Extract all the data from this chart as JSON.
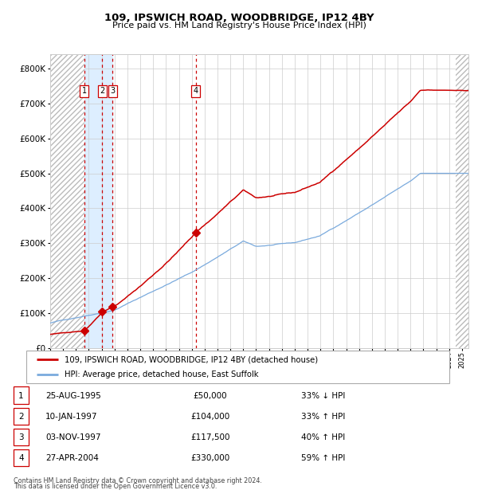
{
  "title": "109, IPSWICH ROAD, WOODBRIDGE, IP12 4BY",
  "subtitle": "Price paid vs. HM Land Registry's House Price Index (HPI)",
  "transactions": [
    {
      "num": 1,
      "date": "25-AUG-1995",
      "year": 1995.65,
      "price": 50000,
      "rel": "33% ↓ HPI"
    },
    {
      "num": 2,
      "date": "10-JAN-1997",
      "year": 1997.03,
      "price": 104000,
      "rel": "33% ↑ HPI"
    },
    {
      "num": 3,
      "date": "03-NOV-1997",
      "year": 1997.84,
      "price": 117500,
      "rel": "40% ↑ HPI"
    },
    {
      "num": 4,
      "date": "27-APR-2004",
      "year": 2004.32,
      "price": 330000,
      "rel": "59% ↑ HPI"
    }
  ],
  "legend_red": "109, IPSWICH ROAD, WOODBRIDGE, IP12 4BY (detached house)",
  "legend_blue": "HPI: Average price, detached house, East Suffolk",
  "footer1": "Contains HM Land Registry data © Crown copyright and database right 2024.",
  "footer2": "This data is licensed under the Open Government Licence v3.0.",
  "ylim": [
    0,
    840000
  ],
  "xmin": 1993.0,
  "xmax": 2025.5,
  "shade_x1": 1995.65,
  "shade_x2": 1997.84,
  "red_color": "#cc0000",
  "blue_color": "#7aaadd",
  "shade_color": "#ddeeff",
  "hatch_color": "#bbbbbb"
}
